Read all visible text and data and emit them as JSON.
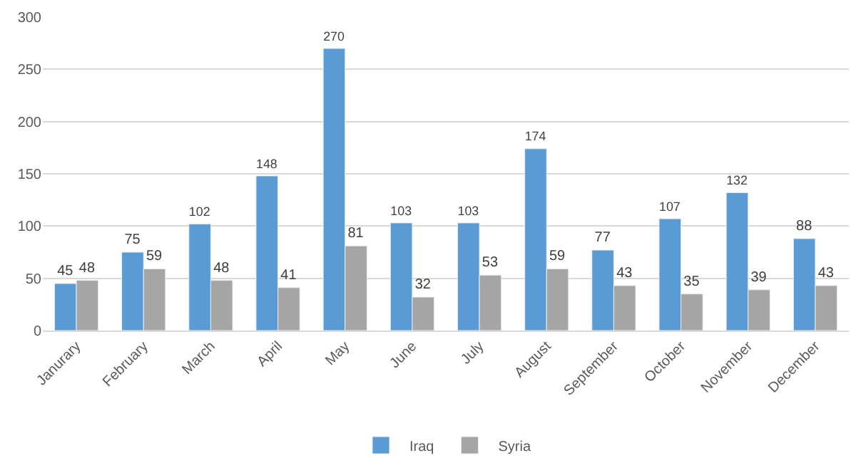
{
  "chart_data": {
    "type": "bar",
    "categories": [
      "Janurary",
      "February",
      "March",
      "April",
      "May",
      "June",
      "July",
      "August",
      "September",
      "October",
      "November",
      "December"
    ],
    "series": [
      {
        "name": "Iraq",
        "color": "#5b9bd5",
        "values": [
          45,
          75,
          102,
          148,
          270,
          103,
          103,
          174,
          77,
          107,
          132,
          88
        ]
      },
      {
        "name": "Syria",
        "color": "#a5a5a5",
        "values": [
          48,
          59,
          48,
          41,
          81,
          32,
          53,
          59,
          43,
          35,
          39,
          43
        ]
      }
    ],
    "ylim": [
      0,
      300
    ],
    "yticks": [
      0,
      50,
      100,
      150,
      200,
      250,
      300
    ],
    "grid": "y",
    "legend": "bottom",
    "data_labels": true
  }
}
